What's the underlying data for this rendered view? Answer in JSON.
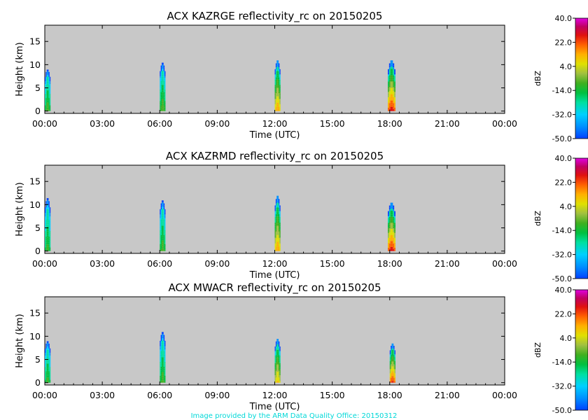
{
  "footer_credit": "Image provided by the ARM Data Quality Office: 20150312",
  "colors": {
    "plot_background": "#c8c8c8",
    "credit_text": "#00d8d8",
    "colormap": [
      "#0040ff",
      "#0090ff",
      "#00d0ff",
      "#00e0a0",
      "#00c040",
      "#40b020",
      "#a0c040",
      "#e0e000",
      "#ffb000",
      "#ff6000",
      "#e01010",
      "#c00060",
      "#e000e0"
    ]
  },
  "chart_data": [
    {
      "type": "heatmap",
      "title": "ACX KAZRGE reflectivity_rc on 20150205",
      "xlabel": "Time (UTC)",
      "ylabel": "Height (km)",
      "x_ticks": [
        "00:00",
        "03:00",
        "06:00",
        "09:00",
        "12:00",
        "15:00",
        "18:00",
        "21:00",
        "00:00"
      ],
      "y_ticks": [
        0,
        5,
        10,
        15
      ],
      "xlim_hours": [
        0,
        24
      ],
      "ylim_km": [
        -0.5,
        18.5
      ],
      "colorbar": {
        "label": "dBZ",
        "ticks": [
          40.0,
          22.0,
          4.0,
          -14.0,
          -32.0,
          -50.0
        ],
        "range": [
          -50,
          40
        ]
      },
      "echoes": [
        {
          "time_start_h": 0.0,
          "time_end_h": 0.3,
          "base_km": 0.0,
          "top_km": 9.0,
          "max_dbz": -10
        },
        {
          "time_start_h": 6.0,
          "time_end_h": 6.3,
          "base_km": 0.0,
          "top_km": 10.5,
          "max_dbz": -8
        },
        {
          "time_start_h": 12.0,
          "time_end_h": 12.3,
          "base_km": 0.0,
          "top_km": 11.0,
          "max_dbz": 15
        },
        {
          "time_start_h": 17.9,
          "time_end_h": 18.3,
          "base_km": 0.0,
          "top_km": 11.0,
          "max_dbz": 28
        }
      ]
    },
    {
      "type": "heatmap",
      "title": "ACX KAZRMD reflectivity_rc on 20150205",
      "xlabel": "Time (UTC)",
      "ylabel": "Height (km)",
      "x_ticks": [
        "00:00",
        "03:00",
        "06:00",
        "09:00",
        "12:00",
        "15:00",
        "18:00",
        "21:00",
        "00:00"
      ],
      "y_ticks": [
        0,
        5,
        10,
        15
      ],
      "xlim_hours": [
        0,
        24
      ],
      "ylim_km": [
        -0.5,
        18.5
      ],
      "colorbar": {
        "label": "dBZ",
        "ticks": [
          40.0,
          22.0,
          4.0,
          -14.0,
          -32.0,
          -50.0
        ],
        "range": [
          -50,
          40
        ]
      },
      "echoes": [
        {
          "time_start_h": 0.0,
          "time_end_h": 0.3,
          "base_km": 0.0,
          "top_km": 11.5,
          "max_dbz": -12
        },
        {
          "time_start_h": 6.0,
          "time_end_h": 6.3,
          "base_km": 0.0,
          "top_km": 11.0,
          "max_dbz": -10
        },
        {
          "time_start_h": 12.0,
          "time_end_h": 12.3,
          "base_km": 0.0,
          "top_km": 12.0,
          "max_dbz": 15
        },
        {
          "time_start_h": 17.9,
          "time_end_h": 18.3,
          "base_km": 0.0,
          "top_km": 10.5,
          "max_dbz": 28
        }
      ]
    },
    {
      "type": "heatmap",
      "title": "ACX MWACR reflectivity_rc on 20150205",
      "xlabel": "Time (UTC)",
      "ylabel": "Height (km)",
      "x_ticks": [
        "00:00",
        "03:00",
        "06:00",
        "09:00",
        "12:00",
        "15:00",
        "18:00",
        "21:00",
        "00:00"
      ],
      "y_ticks": [
        0,
        5,
        10,
        15
      ],
      "xlim_hours": [
        0,
        24
      ],
      "ylim_km": [
        -0.5,
        18.5
      ],
      "colorbar": {
        "label": "dBZ",
        "ticks": [
          40.0,
          22.0,
          4.0,
          -14.0,
          -32.0,
          -50.0
        ],
        "range": [
          -50,
          40
        ]
      },
      "echoes": [
        {
          "time_start_h": 0.0,
          "time_end_h": 0.3,
          "base_km": 0.0,
          "top_km": 9.0,
          "max_dbz": -12
        },
        {
          "time_start_h": 6.0,
          "time_end_h": 6.3,
          "base_km": 0.0,
          "top_km": 11.0,
          "max_dbz": -10
        },
        {
          "time_start_h": 12.0,
          "time_end_h": 12.3,
          "base_km": 0.0,
          "top_km": 9.5,
          "max_dbz": 10
        },
        {
          "time_start_h": 18.0,
          "time_end_h": 18.3,
          "base_km": 0.0,
          "top_km": 8.5,
          "max_dbz": 25
        }
      ]
    }
  ]
}
